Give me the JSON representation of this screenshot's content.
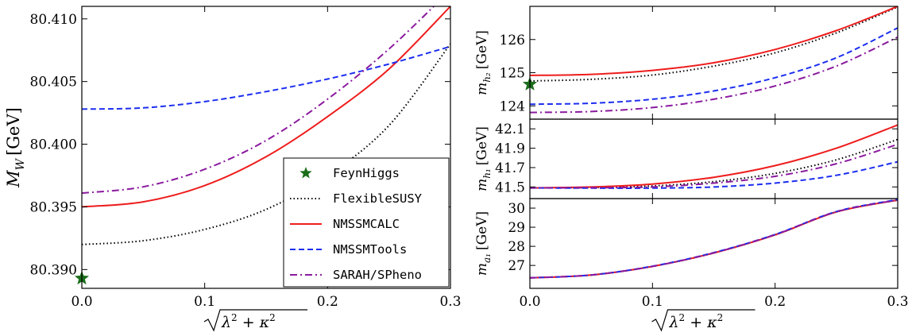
{
  "chart_data": [
    {
      "type": "line",
      "xlabel": "√(λ² + κ²)",
      "ylabel": "M_W [GeV]",
      "ylabel_main": "M",
      "ylabel_sub": "W",
      "ylabel_unit": "[GeV]",
      "xlim": [
        0.0,
        0.3
      ],
      "ylim": [
        80.3885,
        80.411
      ],
      "xticks": [
        "0.0",
        "0.1",
        "0.2",
        "0.3"
      ],
      "yticks": [
        "80.390",
        "80.395",
        "80.400",
        "80.405",
        "80.410"
      ],
      "legend_position": "lower-right",
      "series": [
        {
          "name": "FeynHiggs",
          "color": "#1a6e1a",
          "style": "star",
          "x": [
            0.0
          ],
          "y": [
            80.3893
          ]
        },
        {
          "name": "FlexibleSUSY",
          "color": "#000000",
          "style": "dotted",
          "x": [
            0.0,
            0.05,
            0.1,
            0.15,
            0.2,
            0.25,
            0.3
          ],
          "y": [
            80.392,
            80.3923,
            80.3932,
            80.3948,
            80.3975,
            80.4015,
            80.408
          ]
        },
        {
          "name": "NMSSMCALC",
          "color": "#ee1c1c",
          "style": "solid",
          "x": [
            0.0,
            0.05,
            0.1,
            0.15,
            0.2,
            0.25,
            0.3
          ],
          "y": [
            80.395,
            80.3954,
            80.3967,
            80.399,
            80.4022,
            80.406,
            80.411
          ]
        },
        {
          "name": "NMSSMTools",
          "color": "#1c2ef0",
          "style": "dashed",
          "x": [
            0.0,
            0.05,
            0.1,
            0.15,
            0.2,
            0.25,
            0.3
          ],
          "y": [
            80.4028,
            80.4029,
            80.4034,
            80.4042,
            80.4052,
            80.4064,
            80.4078
          ]
        },
        {
          "name": "SARAH/SPheno",
          "color": "#8a1a9e",
          "style": "dashdot",
          "x": [
            0.0,
            0.05,
            0.1,
            0.15,
            0.2,
            0.25,
            0.3
          ],
          "y": [
            80.3961,
            80.3966,
            80.398,
            80.4003,
            80.4036,
            80.4076,
            80.4123
          ]
        }
      ]
    },
    {
      "type": "line",
      "xlabel": "",
      "ylabel": "m_{h2} [GeV]",
      "ylabel_main": "m",
      "ylabel_sub": "h₂",
      "ylabel_unit": "[GeV]",
      "xlim": [
        0.0,
        0.3
      ],
      "ylim": [
        123.6,
        127.0
      ],
      "xticks": [],
      "yticks": [
        "124",
        "125",
        "126"
      ],
      "series": [
        {
          "name": "FeynHiggs",
          "color": "#1a6e1a",
          "style": "star",
          "x": [
            0.0
          ],
          "y": [
            124.65
          ]
        },
        {
          "name": "FlexibleSUSY",
          "color": "#000000",
          "style": "dotted",
          "x": [
            0.0,
            0.05,
            0.1,
            0.15,
            0.2,
            0.25,
            0.3
          ],
          "y": [
            124.75,
            124.8,
            124.93,
            125.2,
            125.6,
            126.2,
            126.98
          ]
        },
        {
          "name": "NMSSMCALC",
          "color": "#ee1c1c",
          "style": "solid",
          "x": [
            0.0,
            0.05,
            0.1,
            0.15,
            0.2,
            0.25,
            0.3
          ],
          "y": [
            124.92,
            124.95,
            125.07,
            125.3,
            125.7,
            126.27,
            127.0
          ]
        },
        {
          "name": "NMSSMTools",
          "color": "#1c2ef0",
          "style": "dashed",
          "x": [
            0.0,
            0.05,
            0.1,
            0.15,
            0.2,
            0.25,
            0.3
          ],
          "y": [
            124.05,
            124.08,
            124.2,
            124.45,
            124.85,
            125.45,
            126.35
          ]
        },
        {
          "name": "SARAH/SPheno",
          "color": "#8a1a9e",
          "style": "dashdot",
          "x": [
            0.0,
            0.05,
            0.1,
            0.15,
            0.2,
            0.25,
            0.3
          ],
          "y": [
            123.8,
            123.83,
            123.95,
            124.2,
            124.6,
            125.2,
            126.07
          ]
        }
      ]
    },
    {
      "type": "line",
      "xlabel": "",
      "ylabel": "m_{h1} [GeV]",
      "ylabel_main": "m",
      "ylabel_sub": "h₁",
      "ylabel_unit": "[GeV]",
      "xlim": [
        0.0,
        0.3
      ],
      "ylim": [
        41.38,
        42.2
      ],
      "xticks": [],
      "yticks": [
        "41.5",
        "41.7",
        "41.9",
        "42.1"
      ],
      "series": [
        {
          "name": "FlexibleSUSY",
          "color": "#000000",
          "style": "dotted",
          "x": [
            0.0,
            0.05,
            0.1,
            0.15,
            0.2,
            0.25,
            0.3
          ],
          "y": [
            41.49,
            41.495,
            41.51,
            41.555,
            41.64,
            41.78,
            41.99
          ]
        },
        {
          "name": "NMSSMCALC",
          "color": "#ee1c1c",
          "style": "solid",
          "x": [
            0.0,
            0.05,
            0.1,
            0.15,
            0.2,
            0.25,
            0.3
          ],
          "y": [
            41.49,
            41.5,
            41.53,
            41.6,
            41.72,
            41.9,
            42.14
          ]
        },
        {
          "name": "NMSSMTools",
          "color": "#1c2ef0",
          "style": "dashed",
          "x": [
            0.0,
            0.05,
            0.1,
            0.15,
            0.2,
            0.25,
            0.3
          ],
          "y": [
            41.49,
            41.488,
            41.488,
            41.5,
            41.54,
            41.62,
            41.76
          ]
        },
        {
          "name": "SARAH/SPheno",
          "color": "#8a1a9e",
          "style": "dashdot",
          "x": [
            0.0,
            0.05,
            0.1,
            0.15,
            0.2,
            0.25,
            0.3
          ],
          "y": [
            41.49,
            41.492,
            41.5,
            41.54,
            41.61,
            41.74,
            41.94
          ]
        }
      ]
    },
    {
      "type": "line",
      "xlabel": "√(λ² + κ²)",
      "ylabel": "m_{a1} [GeV]",
      "ylabel_main": "m",
      "ylabel_sub": "a₁",
      "ylabel_unit": "[GeV]",
      "xlim": [
        0.0,
        0.3
      ],
      "ylim": [
        25.8,
        30.5
      ],
      "xticks": [
        "0.0",
        "0.1",
        "0.2",
        "0.3"
      ],
      "yticks": [
        "27",
        "28",
        "29",
        "30"
      ],
      "series": [
        {
          "name": "FlexibleSUSY",
          "color": "#000000",
          "style": "dotted",
          "x": [
            0.0,
            0.05,
            0.1,
            0.15,
            0.2,
            0.25,
            0.3
          ],
          "y": [
            26.35,
            26.5,
            26.95,
            27.65,
            28.6,
            29.8,
            30.42
          ]
        },
        {
          "name": "NMSSMCALC",
          "color": "#ee1c1c",
          "style": "solid",
          "x": [
            0.0,
            0.05,
            0.1,
            0.15,
            0.2,
            0.25,
            0.3
          ],
          "y": [
            26.35,
            26.5,
            26.95,
            27.65,
            28.6,
            29.8,
            30.42
          ]
        },
        {
          "name": "NMSSMTools",
          "color": "#1c2ef0",
          "style": "dashed",
          "x": [
            0.0,
            0.05,
            0.1,
            0.15,
            0.2,
            0.25,
            0.3
          ],
          "y": [
            26.35,
            26.5,
            26.96,
            27.67,
            28.62,
            29.82,
            30.45
          ]
        },
        {
          "name": "SARAH/SPheno",
          "color": "#8a1a9e",
          "style": "dashdot",
          "x": [
            0.0,
            0.05,
            0.1,
            0.15,
            0.2,
            0.25,
            0.3
          ],
          "y": [
            26.35,
            26.5,
            26.95,
            27.66,
            28.61,
            29.81,
            30.43
          ]
        }
      ]
    }
  ]
}
